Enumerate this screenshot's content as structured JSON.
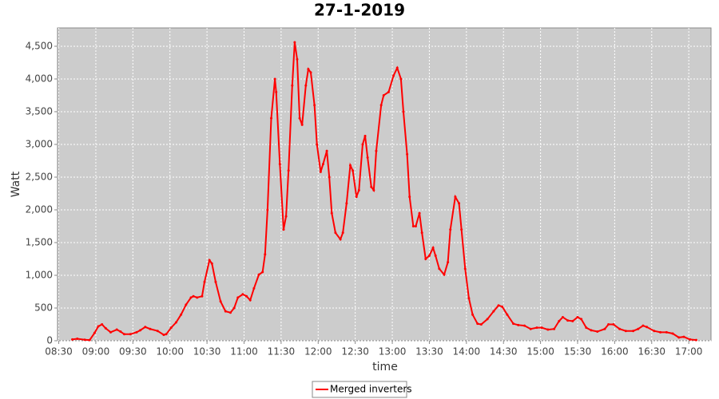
{
  "chart_data": {
    "type": "line",
    "title": "27-1-2019",
    "x_label": "time",
    "y_label": "Watt",
    "x": [
      "08:41",
      "08:45",
      "08:51",
      "08:55",
      "08:59",
      "09:02",
      "09:05",
      "09:08",
      "09:12",
      "09:17",
      "09:20",
      "09:23",
      "09:28",
      "09:33",
      "09:36",
      "09:40",
      "09:44",
      "09:50",
      "09:55",
      "09:57",
      "10:01",
      "10:05",
      "10:09",
      "10:13",
      "10:17",
      "10:19",
      "10:22",
      "10:26",
      "10:28",
      "10:32",
      "10:34",
      "10:37",
      "10:41",
      "10:45",
      "10:49",
      "10:52",
      "10:55",
      "10:59",
      "11:02",
      "11:05",
      "11:08",
      "11:12",
      "11:15",
      "11:17",
      "11:19",
      "11:22",
      "11:25",
      "11:26",
      "11:29",
      "11:32",
      "11:34",
      "11:36",
      "11:39",
      "11:41",
      "11:43",
      "11:45",
      "11:47",
      "11:50",
      "11:52",
      "11:54",
      "11:57",
      "11:59",
      "12:02",
      "12:04",
      "12:07",
      "12:09",
      "12:11",
      "12:14",
      "12:18",
      "12:20",
      "12:23",
      "12:26",
      "12:28",
      "12:31",
      "12:33",
      "12:36",
      "12:38",
      "12:40",
      "12:43",
      "12:45",
      "12:47",
      "12:51",
      "12:53",
      "12:57",
      "13:01",
      "13:04",
      "13:07",
      "13:09",
      "13:12",
      "13:14",
      "13:17",
      "13:19",
      "13:22",
      "13:24",
      "13:27",
      "13:30",
      "13:33",
      "13:35",
      "13:38",
      "13:42",
      "13:45",
      "13:47",
      "13:51",
      "13:54",
      "13:56",
      "13:59",
      "14:02",
      "14:05",
      "14:09",
      "14:12",
      "14:17",
      "14:22",
      "14:26",
      "14:29",
      "14:33",
      "14:38",
      "14:42",
      "14:47",
      "14:52",
      "14:57",
      "15:01",
      "15:06",
      "15:11",
      "15:15",
      "15:18",
      "15:22",
      "15:26",
      "15:30",
      "15:33",
      "15:37",
      "15:41",
      "15:46",
      "15:52",
      "15:55",
      "15:59",
      "16:04",
      "16:09",
      "16:15",
      "16:19",
      "16:23",
      "16:26",
      "16:32",
      "16:37",
      "16:42",
      "16:47",
      "16:52",
      "16:56",
      "17:01",
      "17:06"
    ],
    "series": [
      {
        "name": "Merged inverters",
        "color": "#ff0000",
        "values": [
          20,
          30,
          15,
          10,
          120,
          220,
          250,
          190,
          130,
          170,
          140,
          100,
          100,
          130,
          160,
          210,
          180,
          150,
          90,
          100,
          200,
          280,
          400,
          550,
          660,
          680,
          660,
          680,
          900,
          1230,
          1180,
          900,
          600,
          450,
          430,
          500,
          660,
          710,
          680,
          620,
          800,
          1010,
          1050,
          1320,
          2000,
          3400,
          4000,
          3800,
          2700,
          1700,
          1900,
          2600,
          3900,
          4560,
          4300,
          3400,
          3300,
          3900,
          4150,
          4100,
          3600,
          3000,
          2580,
          2700,
          2900,
          2500,
          1950,
          1650,
          1550,
          1650,
          2100,
          2680,
          2600,
          2200,
          2300,
          3000,
          3130,
          2800,
          2350,
          2300,
          2900,
          3600,
          3750,
          3800,
          4050,
          4170,
          4000,
          3500,
          2850,
          2200,
          1750,
          1750,
          1950,
          1650,
          1250,
          1300,
          1420,
          1300,
          1100,
          1010,
          1200,
          1700,
          2200,
          2100,
          1700,
          1100,
          650,
          400,
          260,
          250,
          330,
          450,
          540,
          520,
          400,
          260,
          240,
          230,
          180,
          200,
          200,
          170,
          180,
          300,
          360,
          310,
          300,
          360,
          330,
          200,
          160,
          140,
          180,
          250,
          250,
          180,
          150,
          150,
          180,
          230,
          210,
          150,
          130,
          130,
          110,
          50,
          60,
          20,
          10
        ]
      }
    ],
    "xlim": [
      "08:29",
      "17:18"
    ],
    "xticks": [
      "08:30",
      "09:00",
      "09:30",
      "10:00",
      "10:30",
      "11:00",
      "11:30",
      "12:00",
      "12:30",
      "13:00",
      "13:30",
      "14:00",
      "14:30",
      "15:00",
      "15:30",
      "16:00",
      "16:30",
      "17:00"
    ],
    "ylim": [
      0,
      4780
    ],
    "yticks": [
      0,
      500,
      {
        "value": 1000,
        "label": "1,000"
      },
      {
        "value": 1500,
        "label": "1,500"
      },
      {
        "value": 2000,
        "label": "2,000"
      },
      {
        "value": 2500,
        "label": "2,500"
      },
      {
        "value": 3000,
        "label": "3,000"
      },
      {
        "value": 3500,
        "label": "3,500"
      },
      {
        "value": 4000,
        "label": "4,000"
      },
      {
        "value": 4500,
        "label": "4,500"
      }
    ],
    "grid": true,
    "legend": "bottom"
  }
}
